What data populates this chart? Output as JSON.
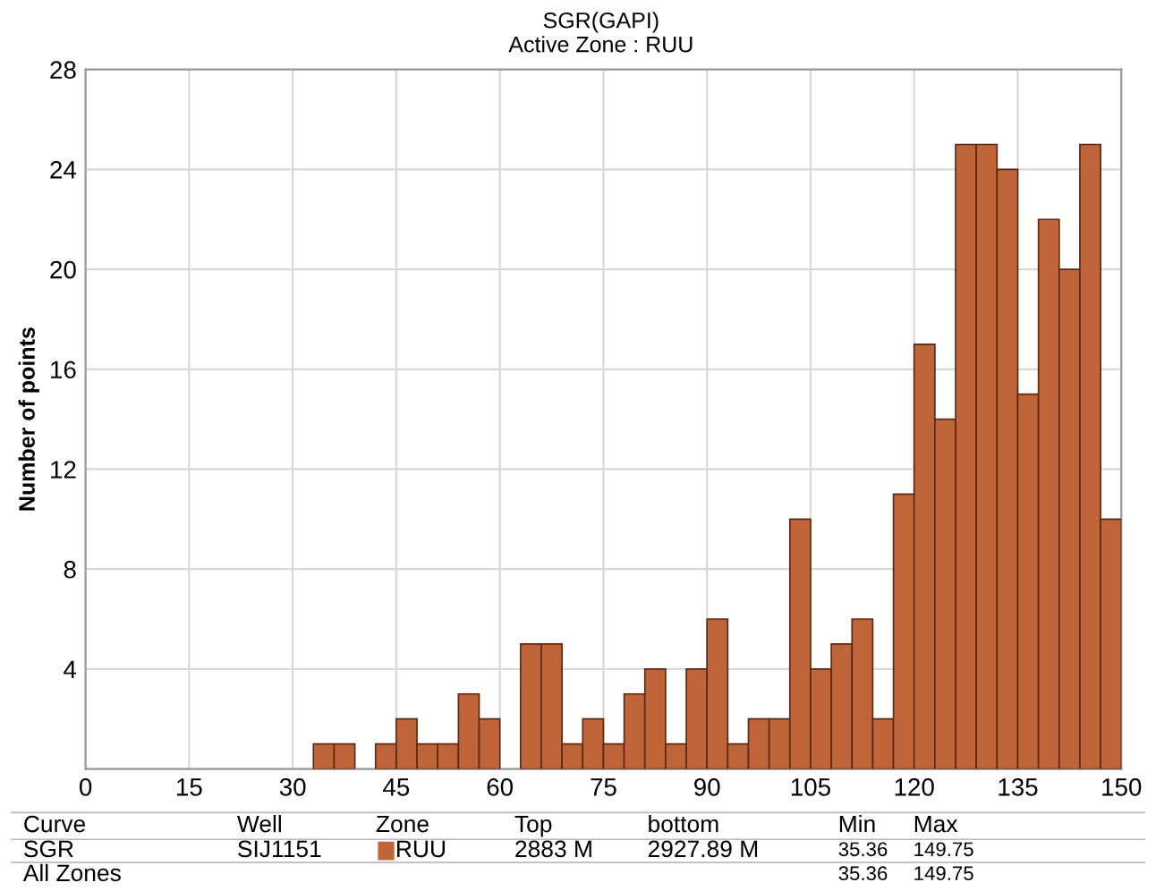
{
  "chart_data": {
    "type": "histogram",
    "title": "SGR(GAPI)",
    "subtitle": "Active Zone : RUU",
    "ylabel": "Number of points",
    "bins": [
      0,
      3,
      6,
      9,
      12,
      15,
      18,
      21,
      24,
      27,
      30,
      33,
      36,
      39,
      42,
      45,
      48,
      51,
      54,
      57,
      60,
      63,
      66,
      69,
      72,
      75,
      78,
      81,
      84,
      87,
      90,
      93,
      96,
      99,
      102,
      105,
      108,
      111,
      114,
      117,
      120,
      123,
      126,
      129,
      132,
      135,
      138,
      141,
      144,
      147,
      150
    ],
    "values": [
      0,
      0,
      0,
      0,
      0,
      0,
      0,
      0,
      0,
      0,
      0,
      1,
      1,
      0,
      1,
      2,
      1,
      1,
      3,
      2,
      0,
      5,
      5,
      1,
      2,
      1,
      3,
      4,
      1,
      4,
      6,
      1,
      2,
      2,
      10,
      4,
      5,
      6,
      2,
      11,
      17,
      14,
      25,
      25,
      24,
      15,
      22,
      20,
      25,
      10
    ],
    "color": "#c0643a",
    "xlim": [
      0,
      150
    ],
    "xticks": [
      0,
      15,
      30,
      45,
      60,
      75,
      90,
      105,
      120,
      135,
      150
    ],
    "ylim": [
      0,
      28
    ],
    "yticks": [
      {
        "value": 0,
        "label": null
      },
      4,
      8,
      12,
      16,
      20,
      24,
      28
    ],
    "grid": true,
    "annotations": [
      "Curve",
      "Well",
      "Zone",
      "Top",
      "bottom",
      "Min",
      "Max",
      "SGR",
      "SIJ1151",
      "RUU",
      "2883 M",
      "2927.89 M",
      "35.36",
      "149.75",
      "All Zones",
      "35.36",
      "149.75"
    ]
  }
}
